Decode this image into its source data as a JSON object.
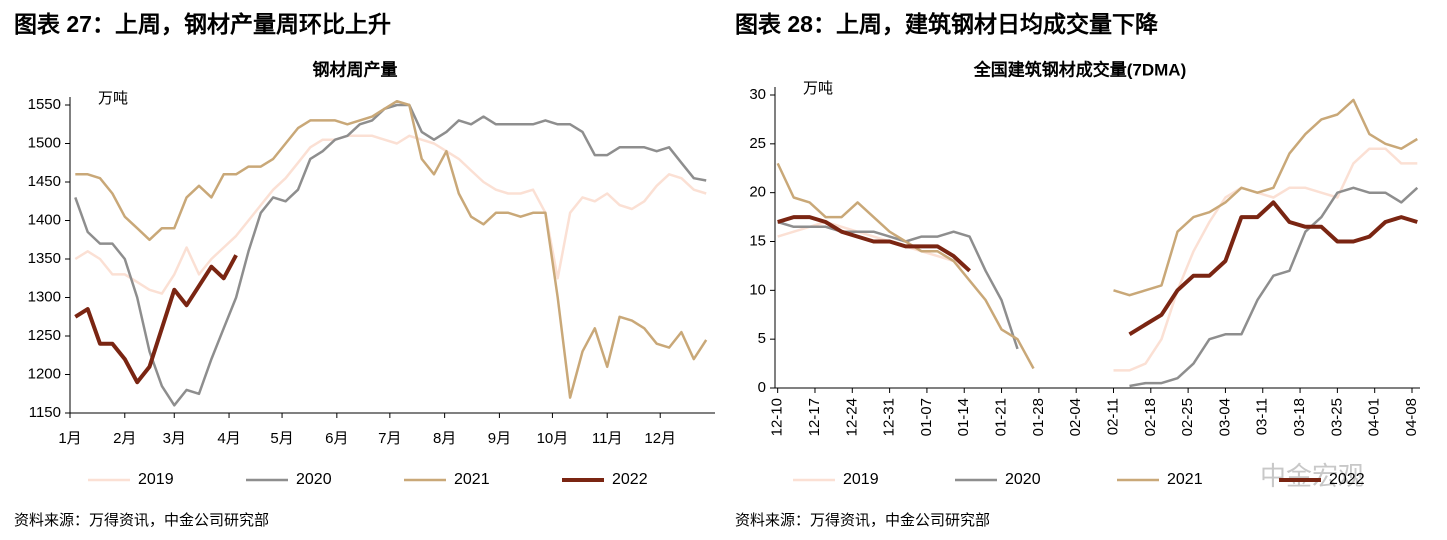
{
  "headings": [
    "图表 27：上周，钢材产量周环比上升",
    "图表 28：上周，建筑钢材日均成交量下降"
  ],
  "sources": [
    "资料来源：万得资讯，中金公司研究部",
    "资料来源：万得资讯，中金公司研究部"
  ],
  "watermark": "中金宏观",
  "chart_data": [
    {
      "type": "line",
      "title": "钢材周产量",
      "y_unit": "万吨",
      "legend": "bottom",
      "xlim": [
        1,
        366
      ],
      "xticks": [
        {
          "value": 1,
          "label": "1月"
        },
        {
          "value": 32,
          "label": "2月"
        },
        {
          "value": 60,
          "label": "3月"
        },
        {
          "value": 91,
          "label": "4月"
        },
        {
          "value": 121,
          "label": "5月"
        },
        {
          "value": 152,
          "label": "6月"
        },
        {
          "value": 182,
          "label": "7月"
        },
        {
          "value": 213,
          "label": "8月"
        },
        {
          "value": 244,
          "label": "9月"
        },
        {
          "value": 274,
          "label": "10月"
        },
        {
          "value": 305,
          "label": "11月"
        },
        {
          "value": 335,
          "label": "12月"
        }
      ],
      "ylim": [
        1150,
        1550
      ],
      "yticks": [
        1150,
        1200,
        1250,
        1300,
        1350,
        1400,
        1450,
        1500,
        1550
      ],
      "x": [
        4,
        11,
        18,
        25,
        32,
        39,
        46,
        53,
        60,
        67,
        74,
        81,
        88,
        95,
        102,
        109,
        116,
        123,
        130,
        137,
        144,
        151,
        158,
        165,
        172,
        179,
        186,
        193,
        200,
        207,
        214,
        221,
        228,
        235,
        242,
        249,
        256,
        263,
        270,
        277,
        284,
        291,
        298,
        305,
        312,
        319,
        326,
        333,
        340,
        347,
        354,
        361
      ],
      "series": [
        {
          "name": "2019",
          "color": "#fbe0d4",
          "width": 2.5,
          "values": [
            1350,
            1360,
            1350,
            1330,
            1330,
            1320,
            1310,
            1305,
            1330,
            1365,
            1330,
            1350,
            1365,
            1380,
            1400,
            1420,
            1440,
            1455,
            1475,
            1495,
            1505,
            1505,
            1510,
            1510,
            1510,
            1505,
            1500,
            1510,
            1505,
            1500,
            1490,
            1480,
            1465,
            1450,
            1440,
            1435,
            1435,
            1440,
            1410,
            1325,
            1410,
            1430,
            1425,
            1435,
            1420,
            1415,
            1425,
            1445,
            1460,
            1455,
            1440,
            1435
          ]
        },
        {
          "name": "2020",
          "color": "#8e8e8e",
          "width": 2.5,
          "values": [
            1430,
            1385,
            1370,
            1370,
            1350,
            1300,
            1230,
            1185,
            1160,
            1180,
            1175,
            1220,
            1260,
            1300,
            1360,
            1410,
            1430,
            1425,
            1440,
            1480,
            1490,
            1505,
            1510,
            1525,
            1530,
            1545,
            1550,
            1550,
            1515,
            1505,
            1515,
            1530,
            1525,
            1535,
            1525,
            1525,
            1525,
            1525,
            1530,
            1525,
            1525,
            1515,
            1485,
            1485,
            1495,
            1495,
            1495,
            1490,
            1495,
            1475,
            1455,
            1452
          ]
        },
        {
          "name": "2021",
          "color": "#c9a878",
          "width": 2.5,
          "values": [
            1460,
            1460,
            1455,
            1435,
            1405,
            1390,
            1375,
            1390,
            1390,
            1430,
            1445,
            1430,
            1460,
            1460,
            1470,
            1470,
            1480,
            1500,
            1520,
            1530,
            1530,
            1530,
            1525,
            1530,
            1535,
            1545,
            1555,
            1550,
            1480,
            1460,
            1490,
            1435,
            1405,
            1395,
            1410,
            1410,
            1405,
            1410,
            1410,
            1300,
            1170,
            1230,
            1260,
            1210,
            1275,
            1270,
            1260,
            1240,
            1235,
            1255,
            1220,
            1245
          ]
        },
        {
          "name": "2022",
          "color": "#7a2512",
          "width": 4,
          "values": [
            1275,
            1285,
            1240,
            1240,
            1220,
            1190,
            1210,
            1260,
            1310,
            1290,
            1315,
            1340,
            1325,
            1355,
            null,
            null,
            null,
            null,
            null,
            null,
            null,
            null,
            null,
            null,
            null,
            null,
            null,
            null,
            null,
            null,
            null,
            null,
            null,
            null,
            null,
            null,
            null,
            null,
            null,
            null,
            null,
            null,
            null,
            null,
            null,
            null,
            null,
            null,
            null,
            null,
            null,
            null
          ]
        }
      ]
    },
    {
      "type": "line",
      "title": "全国建筑钢材成交量(7DMA)",
      "y_unit": "万吨",
      "legend": "bottom",
      "rotate_xticks": true,
      "xlim": [
        -0.5,
        120.5
      ],
      "xticks": [
        {
          "value": 0,
          "label": "12-10"
        },
        {
          "value": 7,
          "label": "12-17"
        },
        {
          "value": 14,
          "label": "12-24"
        },
        {
          "value": 21,
          "label": "12-31"
        },
        {
          "value": 28,
          "label": "01-07"
        },
        {
          "value": 35,
          "label": "01-14"
        },
        {
          "value": 42,
          "label": "01-21"
        },
        {
          "value": 49,
          "label": "01-28"
        },
        {
          "value": 56,
          "label": "02-04"
        },
        {
          "value": 63,
          "label": "02-11"
        },
        {
          "value": 70,
          "label": "02-18"
        },
        {
          "value": 77,
          "label": "02-25"
        },
        {
          "value": 84,
          "label": "03-04"
        },
        {
          "value": 91,
          "label": "03-11"
        },
        {
          "value": 98,
          "label": "03-18"
        },
        {
          "value": 105,
          "label": "03-25"
        },
        {
          "value": 112,
          "label": "04-01"
        },
        {
          "value": 119,
          "label": "04-08"
        }
      ],
      "ylim": [
        0,
        30
      ],
      "yticks": [
        0,
        5,
        10,
        15,
        20,
        25,
        30
      ],
      "x": [
        0,
        3,
        6,
        9,
        12,
        15,
        18,
        21,
        24,
        27,
        30,
        33,
        36,
        39,
        42,
        45,
        48,
        51,
        54,
        57,
        60,
        63,
        66,
        69,
        72,
        75,
        78,
        81,
        84,
        87,
        90,
        93,
        96,
        99,
        102,
        105,
        108,
        111,
        114,
        117,
        120
      ],
      "series": [
        {
          "name": "2019",
          "color": "#fbe0d4",
          "width": 2.5,
          "values": [
            15.5,
            16,
            16.5,
            17,
            16.5,
            16,
            15.5,
            15,
            14.5,
            14,
            13.5,
            13,
            12,
            null,
            null,
            null,
            null,
            null,
            null,
            null,
            null,
            1.8,
            1.8,
            2.5,
            5,
            10,
            14,
            17,
            19.5,
            20.5,
            20,
            19.5,
            20.5,
            20.5,
            20,
            19.5,
            23,
            24.5,
            24.5,
            23,
            23
          ]
        },
        {
          "name": "2020",
          "color": "#8e8e8e",
          "width": 2.5,
          "values": [
            17,
            16.5,
            16.5,
            16.5,
            16,
            16,
            16,
            15.5,
            15,
            15.5,
            15.5,
            16,
            15.5,
            12,
            9,
            4,
            null,
            null,
            null,
            null,
            null,
            null,
            0.2,
            0.5,
            0.5,
            1,
            2.5,
            5,
            5.5,
            5.5,
            9,
            11.5,
            12,
            16,
            17.5,
            20,
            20.5,
            20,
            20,
            19,
            20.5
          ]
        },
        {
          "name": "2021",
          "color": "#c9a878",
          "width": 2.5,
          "values": [
            23,
            19.5,
            19,
            17.5,
            17.5,
            19,
            17.5,
            16,
            15,
            14,
            14,
            13,
            11,
            9,
            6,
            5,
            2,
            null,
            null,
            null,
            null,
            10,
            9.5,
            10,
            10.5,
            16,
            17.5,
            18,
            19,
            20.5,
            20,
            20.5,
            24,
            26,
            27.5,
            28,
            29.5,
            26,
            25,
            24.5,
            25.5
          ]
        },
        {
          "name": "2022",
          "color": "#7a2512",
          "width": 4,
          "values": [
            17,
            17.5,
            17.5,
            17,
            16,
            15.5,
            15,
            15,
            14.5,
            14.5,
            14.5,
            13.5,
            12,
            null,
            null,
            null,
            null,
            null,
            null,
            null,
            null,
            null,
            5.5,
            6.5,
            7.5,
            10,
            11.5,
            11.5,
            13,
            17.5,
            17.5,
            19,
            17,
            16.5,
            16.5,
            15,
            15,
            15.5,
            17,
            17.5,
            17
          ]
        }
      ]
    }
  ]
}
